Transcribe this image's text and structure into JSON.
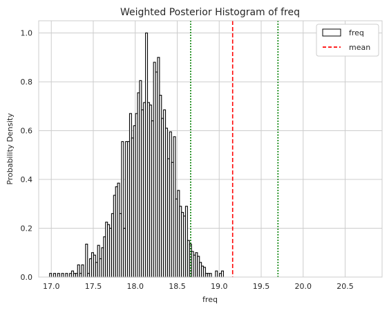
{
  "chart_data": {
    "type": "bar",
    "title": "Weighted Posterior Histogram of freq",
    "xlabel": "freq",
    "ylabel": "Probability Density",
    "xlim": [
      16.85,
      20.94
    ],
    "ylim": [
      0,
      1.05
    ],
    "xticks": [
      {
        "value": 17.0,
        "label": "17.0"
      },
      {
        "value": 17.5,
        "label": "17.5"
      },
      {
        "value": 18.0,
        "label": "18.0"
      },
      {
        "value": 18.5,
        "label": "18.5"
      },
      {
        "value": 19.0,
        "label": "19.0"
      },
      {
        "value": 19.5,
        "label": "19.5"
      },
      {
        "value": 20.0,
        "label": "20.0"
      },
      {
        "value": 20.5,
        "label": "20.5"
      }
    ],
    "yticks": [
      {
        "value": 0.0,
        "label": "0.0"
      },
      {
        "value": 0.2,
        "label": "0.2"
      },
      {
        "value": 0.4,
        "label": "0.4"
      },
      {
        "value": 0.6,
        "label": "0.6"
      },
      {
        "value": 0.8,
        "label": "0.8"
      },
      {
        "value": 1.0,
        "label": "1.0"
      }
    ],
    "grid": true,
    "bins": {
      "start": 16.98,
      "width": 0.0238,
      "values": [
        0.015,
        0,
        0.015,
        0,
        0.015,
        0,
        0.015,
        0,
        0.015,
        0,
        0.015,
        0.025,
        0.015,
        0.015,
        0.05,
        0.015,
        0.05,
        0,
        0.135,
        0.015,
        0.075,
        0.1,
        0.09,
        0.06,
        0.13,
        0.075,
        0.12,
        0.165,
        0.225,
        0.215,
        0.2,
        0.26,
        0.335,
        0.37,
        0.385,
        0.26,
        0.555,
        0.2,
        0.555,
        0.555,
        0.67,
        0.57,
        0.62,
        0.67,
        0.755,
        0.805,
        0.685,
        0.715,
        1.0,
        0.715,
        0.705,
        0.64,
        0.88,
        0.84,
        0.9,
        0.745,
        0.65,
        0.685,
        0.61,
        0.485,
        0.595,
        0.47,
        0.575,
        0.32,
        0.355,
        0.29,
        0.265,
        0.25,
        0.29,
        0.15,
        0.135,
        0.105,
        0.09,
        0.1,
        0.085,
        0.06,
        0.045,
        0.04,
        0.015,
        0.015,
        0.015,
        0,
        0,
        0.025,
        0,
        0.015,
        0.025
      ]
    },
    "lines": [
      {
        "name": "mean",
        "x": 19.16,
        "color": "#ff0000",
        "style": "dashed"
      },
      {
        "x": 18.66,
        "color": "#008000",
        "style": "dotted"
      },
      {
        "x": 19.7,
        "color": "#008000",
        "style": "dotted"
      }
    ],
    "legend": {
      "placement": "top-right",
      "entries": [
        {
          "label": "freq",
          "kind": "patch"
        },
        {
          "label": "mean",
          "kind": "dashed-line",
          "color": "#ff0000"
        }
      ]
    }
  }
}
